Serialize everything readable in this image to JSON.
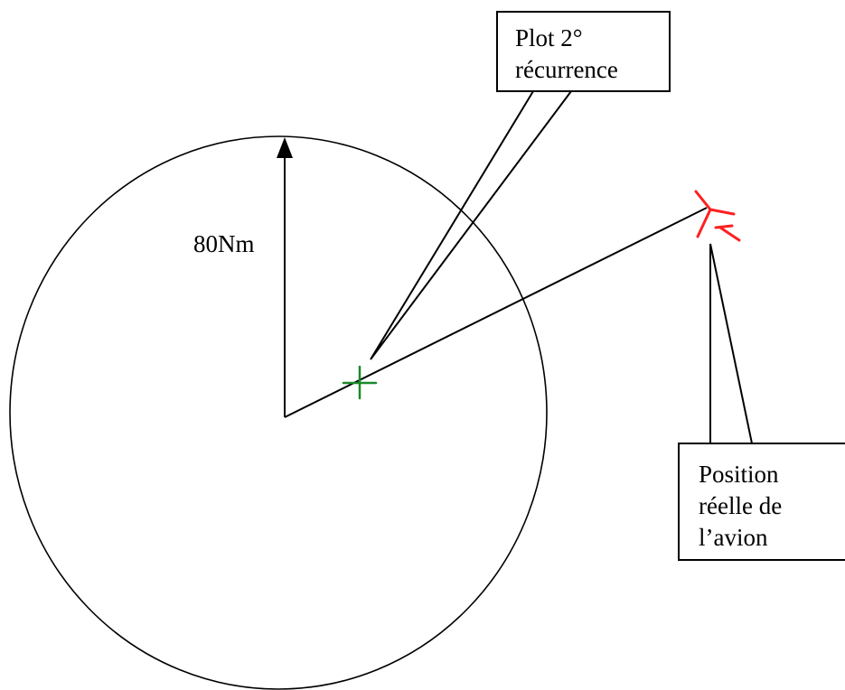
{
  "radius_label": "80Nm",
  "callout_plot": {
    "line1": "Plot 2°",
    "line2": "récurrence"
  },
  "callout_aircraft": {
    "line1": "Position",
    "line2": "réelle de",
    "line3": "l’avion"
  },
  "colors": {
    "ink": "#000000",
    "plot_marker": "#1a8a2a",
    "aircraft_symbol": "#ff2020"
  }
}
